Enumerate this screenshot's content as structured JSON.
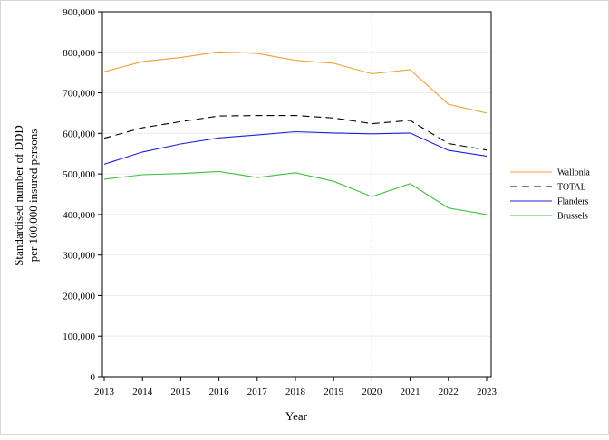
{
  "chart_data": {
    "type": "line",
    "title": "",
    "xlabel": "Year",
    "ylabel_lines": [
      "Standardised number of DDD",
      "per 100,000 insured persons"
    ],
    "x": [
      2013,
      2014,
      2015,
      2016,
      2017,
      2018,
      2019,
      2020,
      2021,
      2022,
      2023
    ],
    "x_tick_labels": [
      "2013",
      "2014",
      "2015",
      "2016",
      "2017",
      "2018",
      "2019",
      "2020",
      "2021",
      "2022",
      "2023"
    ],
    "y_ticks": [
      0,
      100000,
      200000,
      300000,
      400000,
      500000,
      600000,
      700000,
      800000,
      900000
    ],
    "y_tick_labels": [
      "0",
      "100,000",
      "200,000",
      "300,000",
      "400,000",
      "500,000",
      "600,000",
      "700,000",
      "800,000",
      "900,000"
    ],
    "ylim": [
      0,
      900000
    ],
    "xlim": [
      2013,
      2023
    ],
    "grid": "horizontal",
    "legend_position": "right",
    "reference_line": {
      "x": 2020,
      "style": "dotted",
      "color": "#a0405a"
    },
    "series": [
      {
        "name": "Wallonia",
        "color": "#f0a030",
        "dash": "solid",
        "values": [
          752000,
          777000,
          787000,
          801000,
          797000,
          780000,
          773000,
          747000,
          757000,
          672000,
          650000
        ]
      },
      {
        "name": "TOTAL",
        "color": "#000000",
        "dash": "dashed",
        "values": [
          588000,
          614000,
          629000,
          643000,
          644000,
          644000,
          638000,
          624000,
          632000,
          575000,
          559000
        ]
      },
      {
        "name": "Flanders",
        "color": "#2020d8",
        "dash": "solid",
        "values": [
          524000,
          554000,
          574000,
          589000,
          596000,
          604000,
          601000,
          599000,
          601000,
          558000,
          544000
        ]
      },
      {
        "name": "Brussels",
        "color": "#40c040",
        "dash": "solid",
        "values": [
          487000,
          498000,
          501000,
          506000,
          491000,
          503000,
          482000,
          444000,
          476000,
          416000,
          400000
        ]
      }
    ]
  }
}
